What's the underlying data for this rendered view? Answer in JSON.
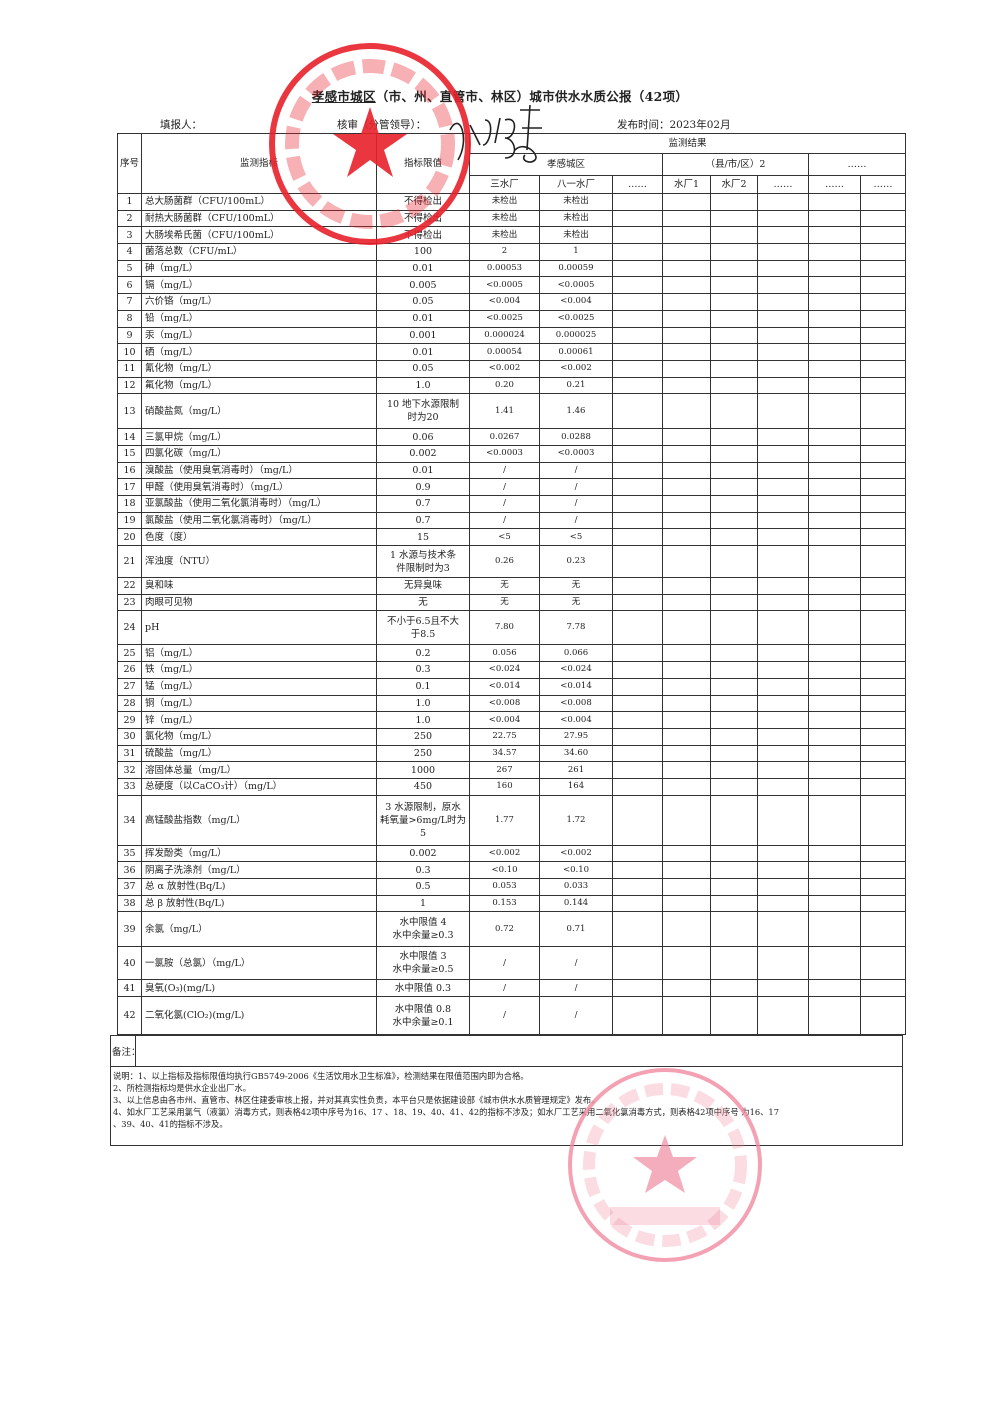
{
  "header": {
    "title_city": "孝感市城区",
    "title_rest": "（市、州、直管市、林区）城市供水水质公报（42项）",
    "filler_label": "填报人：",
    "reviewer_label": "核审（分管领导）：",
    "publish_time": "发布时间：2023年02月"
  },
  "table": {
    "col_seq": "序号",
    "col_indicator": "监测指标",
    "col_limit": "指标限值",
    "col_results": "监测结果",
    "group_1": "孝感城区",
    "group_2": "（县/市/区）2",
    "group_3": "……",
    "plant_1": "三水厂",
    "plant_2": "八一水厂",
    "plant_3": "……",
    "plant_4": "水厂1",
    "plant_5": "水厂2",
    "plant_6": "……",
    "plant_7": "……",
    "plant_8": "……",
    "rows": [
      [
        "1",
        "总大肠菌群（CFU/100mL）",
        "不得检出",
        "未检出",
        "未检出"
      ],
      [
        "2",
        "耐热大肠菌群（CFU/100mL）",
        "不得检出",
        "未检出",
        "未检出"
      ],
      [
        "3",
        "大肠埃希氏菌（CFU/100mL）",
        "不得检出",
        "未检出",
        "未检出"
      ],
      [
        "4",
        "菌落总数（CFU/mL）",
        "100",
        "2",
        "1"
      ],
      [
        "5",
        "砷（mg/L）",
        "0.01",
        "0.00053",
        "0.00059"
      ],
      [
        "6",
        "镉（mg/L）",
        "0.005",
        "<0.0005",
        "<0.0005"
      ],
      [
        "7",
        "六价铬（mg/L）",
        "0.05",
        "<0.004",
        "<0.004"
      ],
      [
        "8",
        "铅（mg/L）",
        "0.01",
        "<0.0025",
        "<0.0025"
      ],
      [
        "9",
        "汞（mg/L）",
        "0.001",
        "0.000024",
        "0.000025"
      ],
      [
        "10",
        "硒（mg/L）",
        "0.01",
        "0.00054",
        "0.00061"
      ],
      [
        "11",
        "氰化物（mg/L）",
        "0.05",
        "<0.002",
        "<0.002"
      ],
      [
        "12",
        "氟化物（mg/L）",
        "1.0",
        "0.20",
        "0.21"
      ],
      [
        "13",
        "硝酸盐氮（mg/L）",
        "10 地下水源限制\n时为20",
        "1.41",
        "1.46"
      ],
      [
        "14",
        "三氯甲烷（mg/L）",
        "0.06",
        "0.0267",
        "0.0288"
      ],
      [
        "15",
        "四氯化碳（mg/L）",
        "0.002",
        "<0.0003",
        "<0.0003"
      ],
      [
        "16",
        "溴酸盐（使用臭氧消毒时）（mg/L）",
        "0.01",
        "/",
        "/"
      ],
      [
        "17",
        "甲醛（使用臭氧消毒时）（mg/L）",
        "0.9",
        "/",
        "/"
      ],
      [
        "18",
        "亚氯酸盐（使用二氧化氯消毒时）（mg/L）",
        "0.7",
        "/",
        "/"
      ],
      [
        "19",
        "氯酸盐（使用二氧化氯消毒时）（mg/L）",
        "0.7",
        "/",
        "/"
      ],
      [
        "20",
        "色度（度）",
        "15",
        "<5",
        "<5"
      ],
      [
        "21",
        "浑浊度（NTU）",
        "1 水源与技术条\n件限制时为3",
        "0.26",
        "0.23"
      ],
      [
        "22",
        "臭和味",
        "无异臭味",
        "无",
        "无"
      ],
      [
        "23",
        "肉眼可见物",
        "无",
        "无",
        "无"
      ],
      [
        "24",
        "pH",
        "不小于6.5且不大\n于8.5",
        "7.80",
        "7.78"
      ],
      [
        "25",
        "铝（mg/L）",
        "0.2",
        "0.056",
        "0.066"
      ],
      [
        "26",
        "铁（mg/L）",
        "0.3",
        "<0.024",
        "<0.024"
      ],
      [
        "27",
        "锰（mg/L）",
        "0.1",
        "<0.014",
        "<0.014"
      ],
      [
        "28",
        "铜（mg/L）",
        "1.0",
        "<0.008",
        "<0.008"
      ],
      [
        "29",
        "锌（mg/L）",
        "1.0",
        "<0.004",
        "<0.004"
      ],
      [
        "30",
        "氯化物（mg/L）",
        "250",
        "22.75",
        "27.95"
      ],
      [
        "31",
        "硫酸盐（mg/L）",
        "250",
        "34.57",
        "34.60"
      ],
      [
        "32",
        "溶固体总量（mg/L）",
        "1000",
        "267",
        "261"
      ],
      [
        "33",
        "总硬度（以CaCO₃计）（mg/L）",
        "450",
        "160",
        "164"
      ],
      [
        "34",
        "高锰酸盐指数（mg/L）",
        "3 水源限制，原水\n耗氧量>6mg/L时为\n5",
        "1.77",
        "1.72"
      ],
      [
        "35",
        "挥发酚类（mg/L）",
        "0.002",
        "<0.002",
        "<0.002"
      ],
      [
        "36",
        "阴离子洗涤剂（mg/L）",
        "0.3",
        "<0.10",
        "<0.10"
      ],
      [
        "37",
        "总 α 放射性(Bq/L)",
        "0.5",
        "0.053",
        "0.033"
      ],
      [
        "38",
        "总 β 放射性(Bq/L)",
        "1",
        "0.153",
        "0.144"
      ],
      [
        "39",
        "余氯（mg/L）",
        "水中限值 4\n水中余量≥0.3",
        "0.72",
        "0.71"
      ],
      [
        "40",
        "一氯胺（总氯）（mg/L）",
        "水中限值 3\n水中余量≥0.5",
        "/",
        "/"
      ],
      [
        "41",
        "臭氧(O₃)(mg/L)",
        "水中限值 0.3",
        "/",
        "/"
      ],
      [
        "42",
        "二氧化氯(ClO₂)(mg/L)",
        "水中限值 0.8\n水中余量≥0.1",
        "/",
        "/"
      ]
    ]
  },
  "remarks_label": "备注：",
  "notes": "说明：1、以上指标及指标限值均执行GB5749-2006《生活饮用水卫生标准》，检测结果在限值范围内即为合格。\n        2、所检测指标均是供水企业出厂水。\n        3、以上信息由各市州、直管市、林区住建委审核上报，并对其真实性负责，本平台只是依据建设部《城市供水水质管理规定》发布。\n        4、如水厂工艺采用氯气（液氯）消毒方式，则表格42项中序号为16、17 、18、19、40、41、42的指标不涉及；如水厂工艺采用二氧化氯消毒方式，则表格42项中序号 为16、17\n、39、40、41的指标不涉及。",
  "stamps": {
    "company_seal_text": "孝感市自来水有限公司",
    "company_seal_number": "4209021002530",
    "inspection_seal_text": "检验检测专用章",
    "seal_color": "#e8202a",
    "inspection_seal_color": "#f08aa0"
  }
}
